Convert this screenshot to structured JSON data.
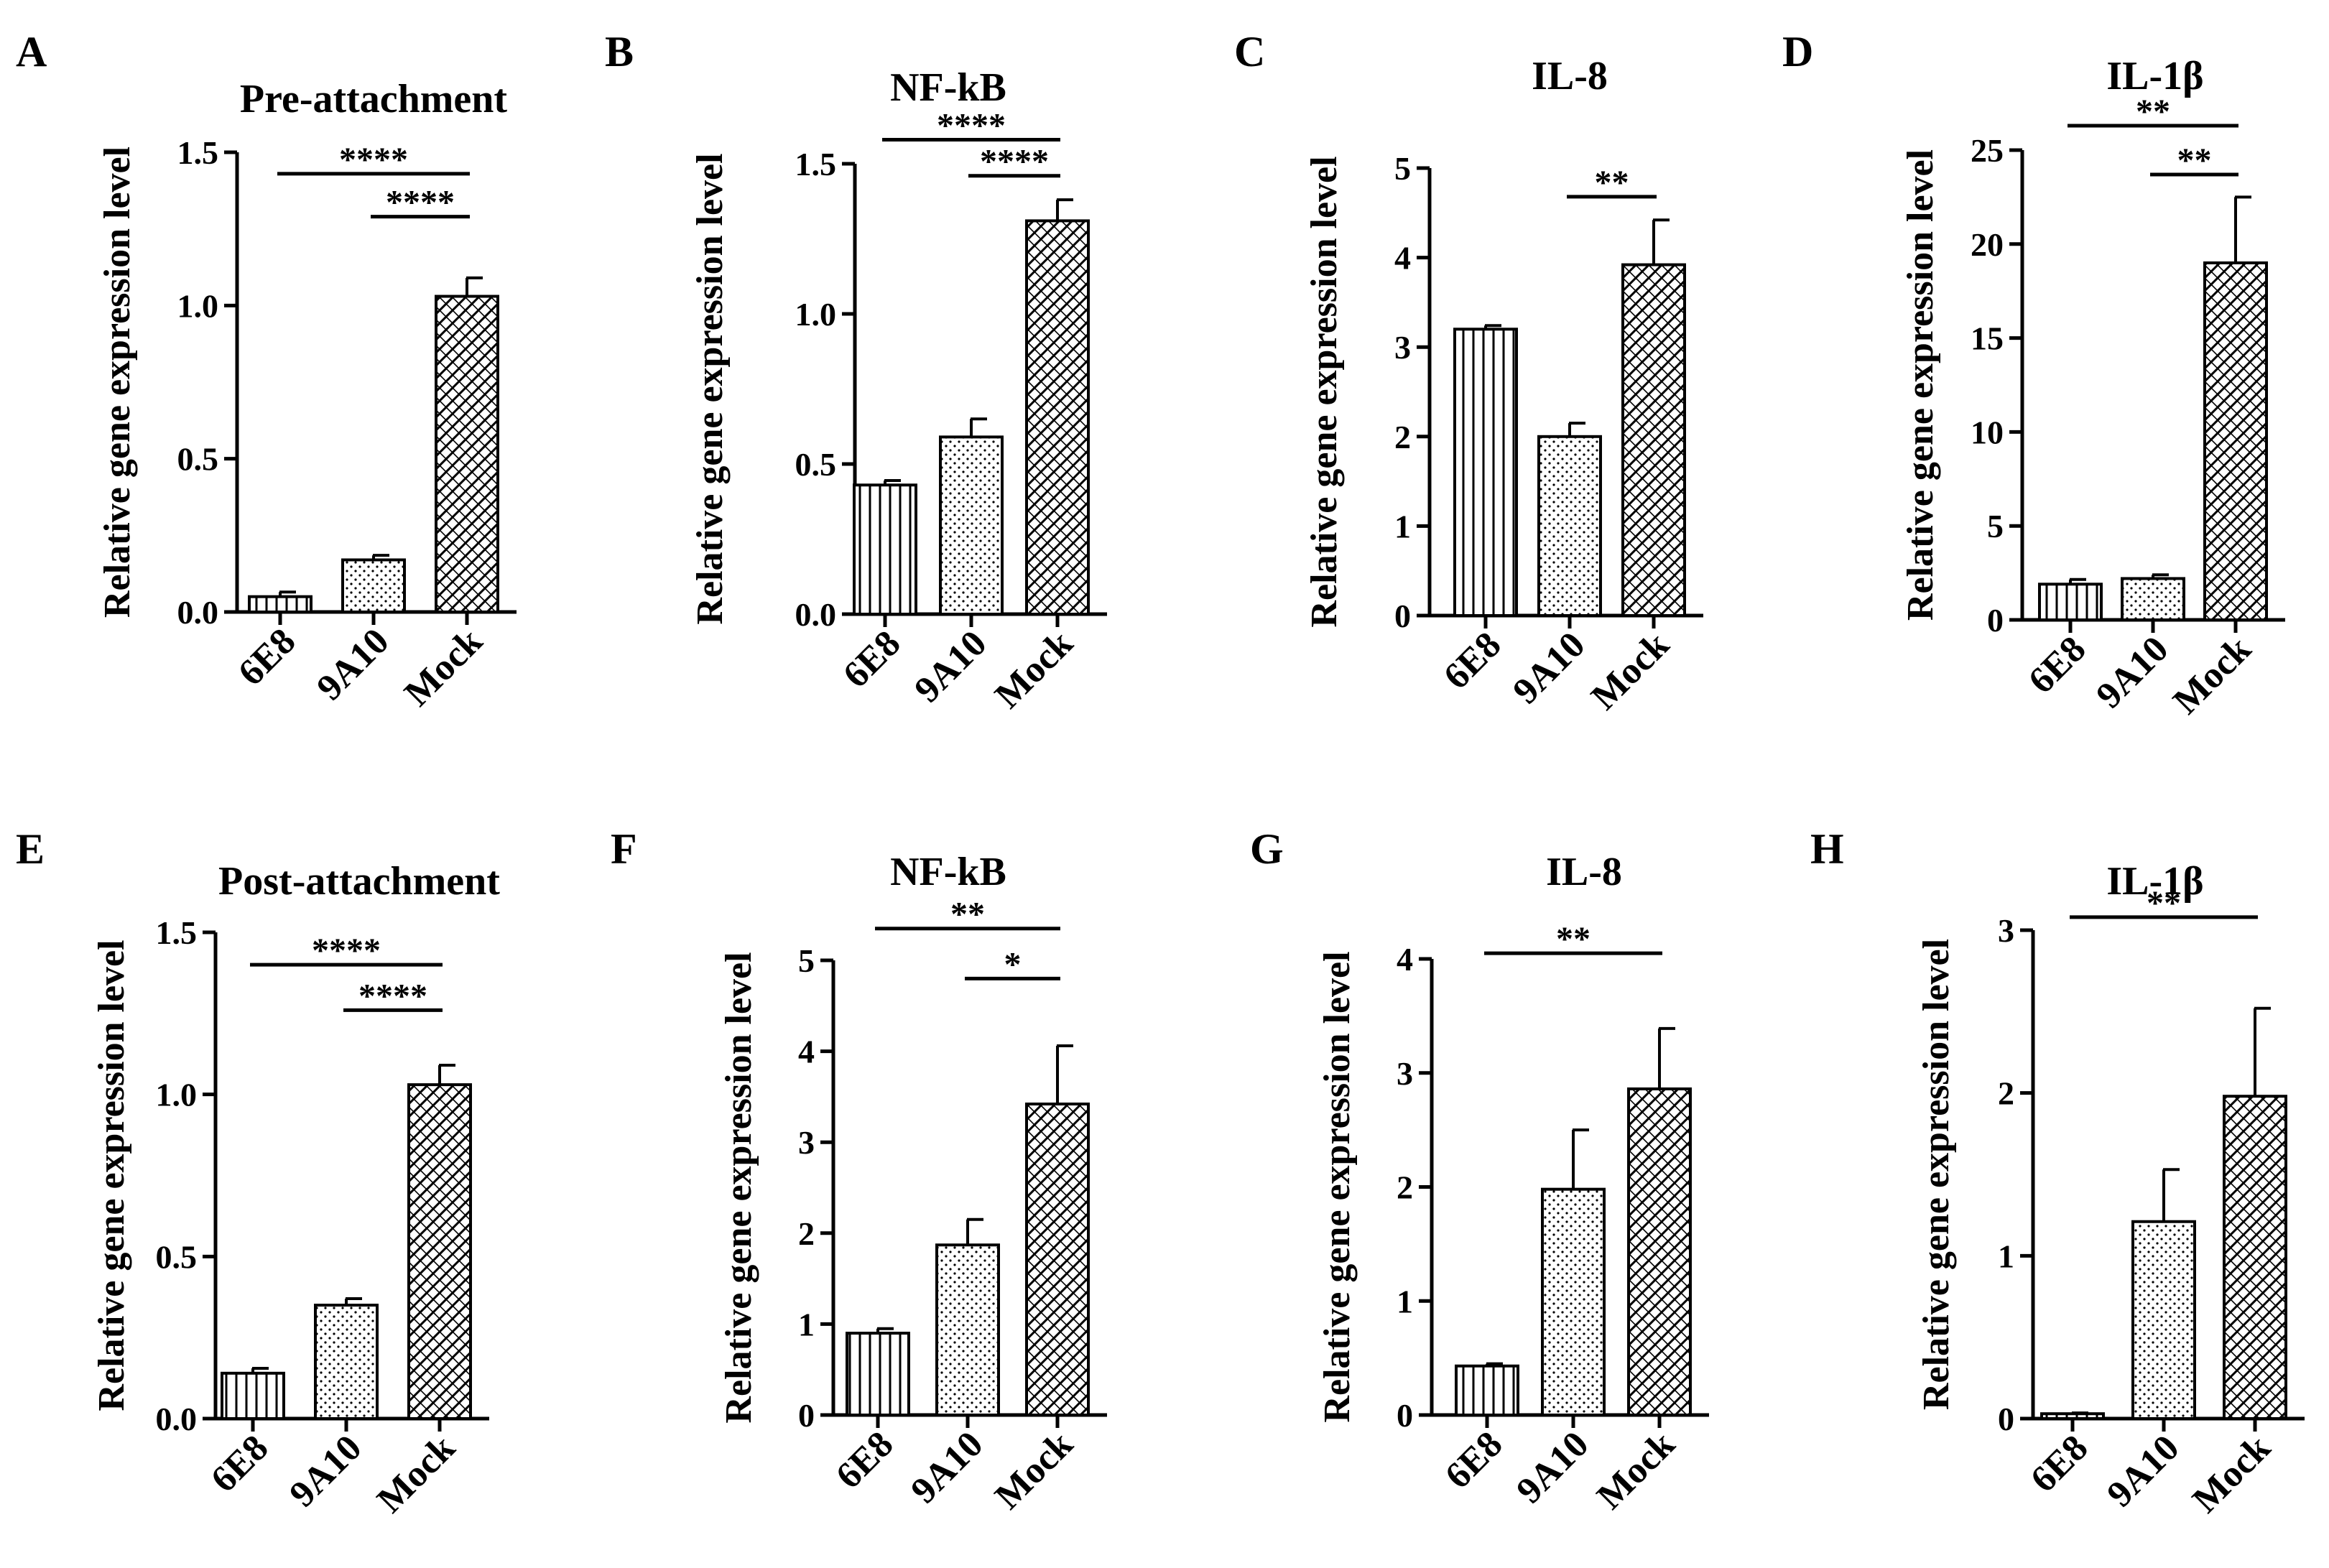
{
  "colors": {
    "ink": "#000000",
    "background": "#ffffff"
  },
  "chart_data": [
    {
      "letter": "A",
      "type": "bar",
      "title": "Pre-attachment",
      "ylabel": "Relative gene expression level",
      "categories": [
        "6E8",
        "9A10",
        "Mock"
      ],
      "patterns": [
        "vertical-lines",
        "dots",
        "crosshatch"
      ],
      "values": [
        0.05,
        0.17,
        1.03
      ],
      "errors": [
        0.015,
        0.015,
        0.06
      ],
      "ylim": [
        0,
        1.5
      ],
      "yticks": [
        "0.0",
        "0.5",
        "1.0",
        "1.5"
      ],
      "significance": [
        {
          "from": 0,
          "to": 2,
          "y": 1.43,
          "label": "****"
        },
        {
          "from": 1,
          "to": 2,
          "y": 1.29,
          "label": "****"
        }
      ]
    },
    {
      "letter": "B",
      "type": "bar",
      "title": "NF-kB",
      "ylabel": "Relative gene expression level",
      "categories": [
        "6E8",
        "9A10",
        "Mock"
      ],
      "patterns": [
        "vertical-lines",
        "dots",
        "crosshatch"
      ],
      "values": [
        0.43,
        0.59,
        1.31
      ],
      "errors": [
        0.015,
        0.06,
        0.07
      ],
      "ylim": [
        0,
        1.5
      ],
      "yticks": [
        "0.0",
        "0.5",
        "1.0",
        "1.5"
      ],
      "significance": [
        {
          "from": 0,
          "to": 2,
          "y": 1.58,
          "label": "****"
        },
        {
          "from": 1,
          "to": 2,
          "y": 1.46,
          "label": "****"
        }
      ]
    },
    {
      "letter": "C",
      "type": "bar",
      "title": "IL-8",
      "ylabel": "Relative gene expression level",
      "categories": [
        "6E8",
        "9A10",
        "Mock"
      ],
      "patterns": [
        "vertical-lines",
        "dots",
        "crosshatch"
      ],
      "values": [
        3.2,
        2.0,
        3.92
      ],
      "errors": [
        0.04,
        0.15,
        0.5
      ],
      "ylim": [
        0,
        5
      ],
      "yticks": [
        "0",
        "1",
        "2",
        "3",
        "4",
        "5"
      ],
      "significance": [
        {
          "from": 1,
          "to": 2,
          "y": 4.68,
          "label": "**"
        }
      ]
    },
    {
      "letter": "D",
      "type": "bar",
      "title": "IL-1β",
      "ylabel": "Relative gene expression level",
      "categories": [
        "6E8",
        "9A10",
        "Mock"
      ],
      "patterns": [
        "vertical-lines",
        "dots",
        "crosshatch"
      ],
      "values": [
        1.9,
        2.2,
        19.0
      ],
      "errors": [
        0.25,
        0.2,
        3.5
      ],
      "ylim": [
        0,
        25
      ],
      "yticks": [
        "0",
        "5",
        "10",
        "15",
        "20",
        "25"
      ],
      "significance": [
        {
          "from": 0,
          "to": 2,
          "y": 26.3,
          "label": "**"
        },
        {
          "from": 1,
          "to": 2,
          "y": 23.7,
          "label": "**"
        }
      ]
    },
    {
      "letter": "E",
      "type": "bar",
      "title": "Post-attachment",
      "ylabel": "Relative gene expression level",
      "categories": [
        "6E8",
        "9A10",
        "Mock"
      ],
      "patterns": [
        "vertical-lines",
        "dots",
        "crosshatch"
      ],
      "values": [
        0.14,
        0.35,
        1.03
      ],
      "errors": [
        0.015,
        0.02,
        0.06
      ],
      "ylim": [
        0,
        1.5
      ],
      "yticks": [
        "0.0",
        "0.5",
        "1.0",
        "1.5"
      ],
      "significance": [
        {
          "from": 0,
          "to": 2,
          "y": 1.4,
          "label": "****"
        },
        {
          "from": 1,
          "to": 2,
          "y": 1.26,
          "label": "****"
        }
      ]
    },
    {
      "letter": "F",
      "type": "bar",
      "title": "NF-kB",
      "ylabel": "Relative gene expression level",
      "categories": [
        "6E8",
        "9A10",
        "Mock"
      ],
      "patterns": [
        "vertical-lines",
        "dots",
        "crosshatch"
      ],
      "values": [
        0.9,
        1.87,
        3.42
      ],
      "errors": [
        0.05,
        0.28,
        0.64
      ],
      "ylim": [
        0,
        5
      ],
      "yticks": [
        "0",
        "1",
        "2",
        "3",
        "4",
        "5"
      ],
      "significance": [
        {
          "from": 0,
          "to": 2,
          "y": 5.35,
          "label": "**"
        },
        {
          "from": 1,
          "to": 2,
          "y": 4.8,
          "label": "*"
        }
      ]
    },
    {
      "letter": "G",
      "type": "bar",
      "title": "IL-8",
      "ylabel": "Relative gene expression level",
      "categories": [
        "6E8",
        "9A10",
        "Mock"
      ],
      "patterns": [
        "vertical-lines",
        "dots",
        "crosshatch"
      ],
      "values": [
        0.43,
        1.98,
        2.86
      ],
      "errors": [
        0.02,
        0.52,
        0.53
      ],
      "ylim": [
        0,
        4
      ],
      "yticks": [
        "0",
        "1",
        "2",
        "3",
        "4"
      ],
      "significance": [
        {
          "from": 0,
          "to": 2,
          "y": 4.05,
          "label": "**"
        }
      ]
    },
    {
      "letter": "H",
      "type": "bar",
      "title": "IL-1β",
      "ylabel": "Relative gene expression level",
      "categories": [
        "6E8",
        "9A10",
        "Mock"
      ],
      "patterns": [
        "vertical-lines",
        "dots",
        "crosshatch"
      ],
      "values": [
        0.03,
        1.21,
        1.98
      ],
      "errors": [
        0.005,
        0.32,
        0.54
      ],
      "ylim": [
        0,
        3
      ],
      "yticks": [
        "0",
        "1",
        "2",
        "3"
      ],
      "significance": [
        {
          "from": 0,
          "to": 2,
          "y": 3.08,
          "label": "**"
        }
      ]
    }
  ]
}
